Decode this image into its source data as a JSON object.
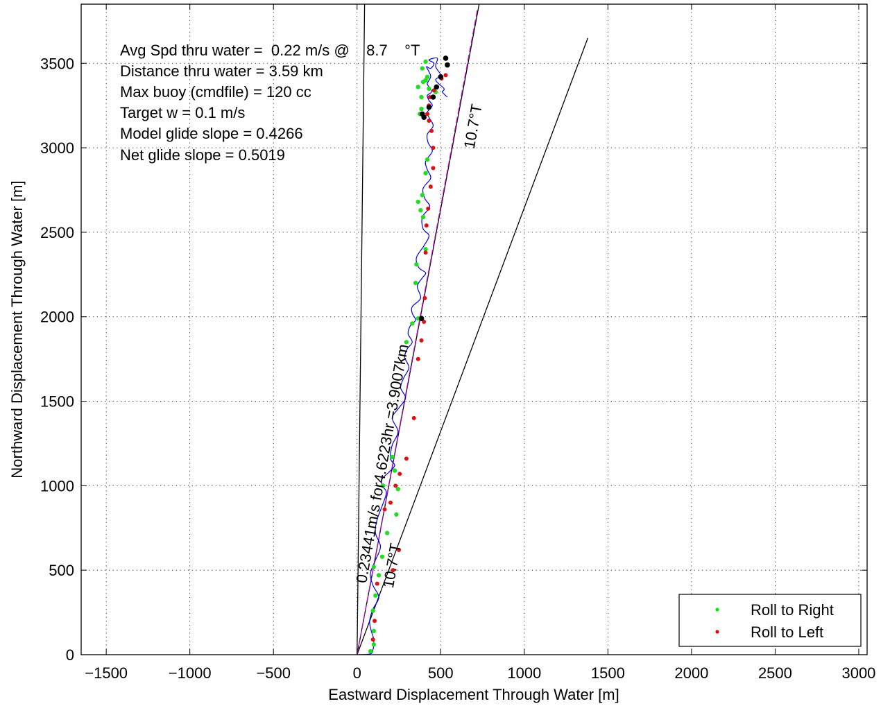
{
  "chart_data": {
    "type": "line",
    "xlabel": "Eastward Displacement Through Water [m]",
    "ylabel": "Northward Displacement Through Water [m]",
    "xlim": [
      -1650,
      3050
    ],
    "ylim": [
      0,
      3850
    ],
    "xticks": [
      -1500,
      -1000,
      -500,
      0,
      500,
      1000,
      1500,
      2000,
      2500,
      3000
    ],
    "yticks": [
      0,
      500,
      1000,
      1500,
      2000,
      2500,
      3000,
      3500
    ],
    "xtick_labels": [
      "−1500",
      "−1000",
      "−500",
      "0",
      "500",
      "1000",
      "1500",
      "2000",
      "2500",
      "3000"
    ],
    "ytick_labels": [
      "0",
      "500",
      "1000",
      "1500",
      "2000",
      "2500",
      "3000",
      "3500"
    ],
    "grid": true,
    "legend_position": "bottom-right",
    "legend": [
      {
        "label": "Roll to Right",
        "color": "#00ee00"
      },
      {
        "label": "Roll to Left",
        "color": "#ee0000"
      }
    ],
    "annotations": [
      "Avg Spd thru water =  0.22 m/s @    8.7    °T",
      "Distance thru water =  3.59 km",
      "Max buoy (cmdfile) = 120 cc",
      "Target w = 0.1 m/s",
      "Model glide slope = 0.4266",
      "Net glide slope = 0.5019"
    ],
    "rotated_labels": [
      {
        "text": "10.7°T",
        "x": 700,
        "y": 2990,
        "angle": -80
      },
      {
        "text": "0.23441m/s for4.6223hr =3.9007km",
        "x": 55,
        "y": 420,
        "angle": -80
      },
      {
        "text": "10.7°T",
        "x": 215,
        "y": 390,
        "angle": -80
      }
    ],
    "reference_lines": [
      {
        "name": "",
        "color": "#000000",
        "x": [
          0,
          45
        ],
        "y": [
          0,
          3850
        ]
      },
      {
        "name": "",
        "color": "#000000",
        "x": [
          0,
          730
        ],
        "y": [
          0,
          3850
        ]
      },
      {
        "name": "",
        "color": "#000000",
        "x": [
          0,
          1380
        ],
        "y": [
          0,
          3650
        ]
      },
      {
        "name": "",
        "color": "#cc00cc",
        "dashed": true,
        "x": [
          0,
          720
        ],
        "y": [
          0,
          3820
        ]
      }
    ],
    "series": [
      {
        "name": "",
        "color": "#0000ee",
        "x": [
          0,
          80,
          95,
          100,
          98,
          85,
          75,
          95,
          130,
          95,
          80,
          110,
          140,
          110,
          120,
          150,
          175,
          150,
          150,
          190,
          225,
          200,
          210,
          245,
          210,
          250,
          290,
          260,
          280,
          310,
          285,
          300,
          330,
          305,
          320,
          350,
          330,
          330,
          380,
          360,
          390,
          410,
          370,
          355,
          400,
          430,
          395,
          390,
          435,
          405,
          395,
          440,
          420,
          410,
          450,
          425,
          420,
          455,
          430,
          420,
          450,
          430,
          420,
          445,
          430,
          420,
          440,
          430,
          415,
          440,
          460,
          430,
          480,
          470,
          500,
          470,
          520,
          510,
          540
        ],
        "y": [
          0,
          5,
          30,
          60,
          100,
          140,
          200,
          270,
          340,
          410,
          480,
          560,
          640,
          720,
          800,
          880,
          960,
          1000,
          1040,
          1080,
          1120,
          1160,
          1240,
          1320,
          1400,
          1460,
          1520,
          1580,
          1640,
          1700,
          1760,
          1810,
          1850,
          1900,
          1950,
          1980,
          2020,
          2060,
          2110,
          2180,
          2230,
          2260,
          2290,
          2350,
          2420,
          2480,
          2520,
          2590,
          2650,
          2700,
          2760,
          2820,
          2870,
          2920,
          2980,
          3030,
          3080,
          3130,
          3180,
          3210,
          3250,
          3280,
          3310,
          3330,
          3360,
          3380,
          3420,
          3450,
          3480,
          3470,
          3500,
          3520,
          3530,
          3480,
          3430,
          3400,
          3350,
          3330,
          3300
        ]
      }
    ],
    "roll_right_points": {
      "x": [
        80,
        100,
        100,
        95,
        110,
        130,
        100,
        150,
        180,
        235,
        245,
        155,
        225,
        210,
        295,
        330,
        365,
        350,
        355,
        410,
        395,
        380,
        365,
        390,
        410,
        420,
        375,
        385,
        385,
        365,
        395,
        410,
        390,
        410,
        420,
        430,
        470
      ],
      "y": [
        20,
        60,
        140,
        260,
        350,
        470,
        520,
        580,
        720,
        830,
        980,
        1000,
        1090,
        1170,
        1850,
        1960,
        1990,
        2200,
        2310,
        2400,
        2590,
        2630,
        2680,
        2720,
        2850,
        2930,
        3200,
        3230,
        3300,
        3360,
        3390,
        3400,
        3470,
        3510,
        3420,
        3350,
        3330
      ]
    },
    "roll_left_points": {
      "x": [
        95,
        105,
        120,
        215,
        250,
        165,
        200,
        230,
        255,
        295,
        340,
        365,
        385,
        400,
        405,
        410,
        415,
        425,
        440,
        455,
        455,
        445,
        430,
        420,
        430,
        435,
        460,
        505,
        530
      ],
      "y": [
        90,
        200,
        420,
        500,
        620,
        860,
        900,
        1000,
        1070,
        1160,
        1400,
        1750,
        1860,
        1970,
        2110,
        2380,
        2540,
        2640,
        2770,
        2880,
        3000,
        3100,
        3160,
        3200,
        3250,
        3300,
        3340,
        3410,
        3430
      ]
    },
    "black_points": {
      "x": [
        530,
        540,
        500,
        475,
        455,
        430,
        400,
        390,
        385
      ],
      "y": [
        3530,
        3490,
        3420,
        3360,
        3300,
        3240,
        3180,
        3200,
        1990
      ]
    }
  }
}
